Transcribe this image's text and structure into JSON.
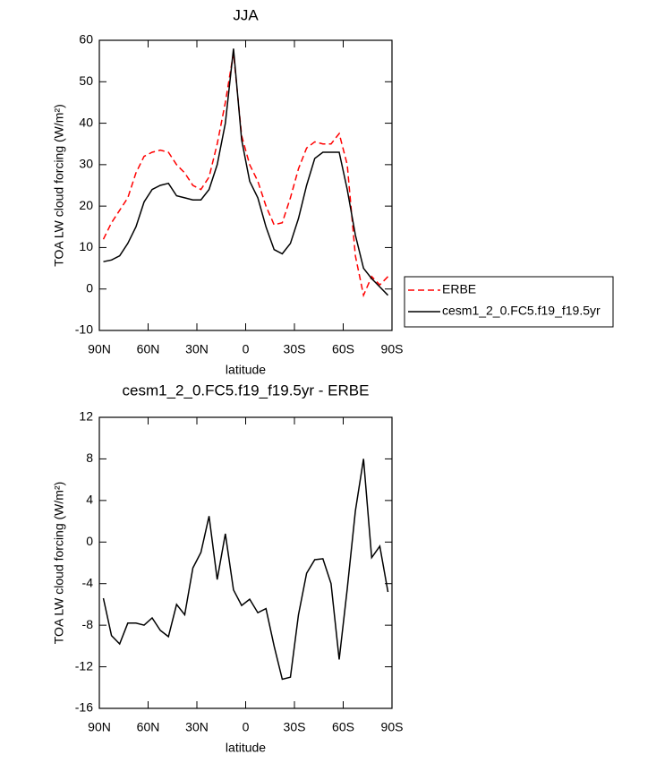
{
  "chart_data": [
    {
      "type": "line",
      "title": "JJA",
      "xlabel": "latitude",
      "ylabel": "TOA LW cloud forcing (W/m²)",
      "x": [
        87.5,
        82.5,
        77.5,
        72.5,
        67.5,
        62.5,
        57.5,
        52.5,
        47.5,
        42.5,
        37.5,
        32.5,
        27.5,
        22.5,
        17.5,
        12.5,
        7.5,
        2.5,
        -2.5,
        -7.5,
        -12.5,
        -17.5,
        -22.5,
        -27.5,
        -32.5,
        -37.5,
        -42.5,
        -47.5,
        -52.5,
        -57.5,
        -62.5,
        -67.5,
        -72.5,
        -77.5,
        -82.5,
        -87.5
      ],
      "series": [
        {
          "name": "ERBE",
          "color": "#ff0000",
          "dash": true,
          "values": [
            12,
            16,
            19,
            22,
            28,
            32,
            33,
            33.5,
            33,
            30,
            28,
            25,
            24,
            27,
            35,
            45,
            57,
            37,
            30,
            26,
            20,
            15.5,
            16,
            22,
            29,
            34,
            35.5,
            35,
            35,
            37.5,
            30,
            8,
            -1.5,
            3,
            1,
            3
          ]
        },
        {
          "name": "cesm1_2_0.FC5.f19_f19.5yr",
          "color": "#000000",
          "dash": false,
          "values": [
            6.6,
            7,
            8,
            11,
            15,
            21,
            24,
            25,
            25.5,
            22.5,
            22,
            21.5,
            21.5,
            24,
            30,
            40,
            58,
            36,
            26,
            22,
            15,
            9.5,
            8.5,
            11,
            17,
            25,
            31.5,
            33,
            33,
            33,
            24,
            13,
            5,
            2.5,
            0.5,
            -1.5
          ]
        }
      ],
      "xlim": [
        90,
        -90
      ],
      "xticks": [
        {
          "value": 90,
          "label": "90N"
        },
        {
          "value": 60,
          "label": "60N"
        },
        {
          "value": 30,
          "label": "30N"
        },
        0,
        {
          "value": -30,
          "label": "30S"
        },
        {
          "value": -60,
          "label": "60S"
        },
        {
          "value": -90,
          "label": "90S"
        }
      ],
      "ylim": [
        -10,
        60
      ],
      "yticks": [
        -10,
        0,
        10,
        20,
        30,
        40,
        50,
        60
      ],
      "legend": "right"
    },
    {
      "type": "line",
      "title": "cesm1_2_0.FC5.f19_f19.5yr - ERBE",
      "xlabel": "latitude",
      "ylabel": "TOA LW cloud forcing (W/m²)",
      "x": [
        87.5,
        82.5,
        77.5,
        72.5,
        67.5,
        62.5,
        57.5,
        52.5,
        47.5,
        42.5,
        37.5,
        32.5,
        27.5,
        22.5,
        17.5,
        12.5,
        7.5,
        2.5,
        -2.5,
        -7.5,
        -12.5,
        -17.5,
        -22.5,
        -27.5,
        -32.5,
        -37.5,
        -42.5,
        -47.5,
        -52.5,
        -57.5,
        -62.5,
        -67.5,
        -72.5,
        -77.5,
        -82.5,
        -87.5
      ],
      "series": [
        {
          "color": "#000000",
          "dash": false,
          "values": [
            -5.4,
            -9,
            -9.8,
            -7.8,
            -7.8,
            -8,
            -7.3,
            -8.5,
            -9.1,
            -6,
            -7,
            -2.5,
            -1,
            2.5,
            -3.6,
            0.8,
            -4.6,
            -6.1,
            -5.5,
            -6.8,
            -6.4,
            -10,
            -13.2,
            -13,
            -7,
            -3,
            -1.7,
            -1.6,
            -4,
            -11.3,
            -4.5,
            3,
            8,
            -1.5,
            -0.4,
            -4.8
          ]
        }
      ],
      "xlim": [
        90,
        -90
      ],
      "xticks": [
        {
          "value": 90,
          "label": "90N"
        },
        {
          "value": 60,
          "label": "60N"
        },
        {
          "value": 30,
          "label": "30N"
        },
        0,
        {
          "value": -30,
          "label": "30S"
        },
        {
          "value": -60,
          "label": "60S"
        },
        {
          "value": -90,
          "label": "90S"
        }
      ],
      "ylim": [
        -16,
        12
      ],
      "yticks": [
        -16,
        -12,
        -8,
        -4,
        0,
        4,
        8,
        12
      ]
    }
  ]
}
